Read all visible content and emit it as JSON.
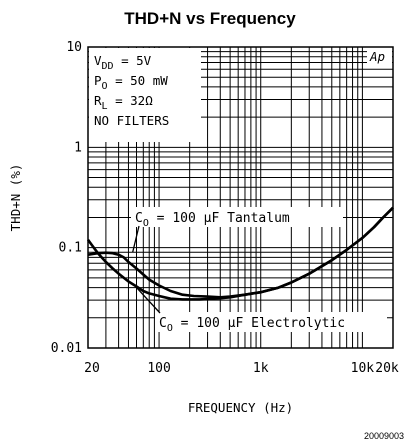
{
  "chart_data": {
    "type": "line",
    "title": "THD+N vs Frequency",
    "xlabel": "FREQUENCY (Hz)",
    "ylabel": "THD+N (%)",
    "x_scale": "log",
    "y_scale": "log",
    "xlim": [
      20,
      20000
    ],
    "ylim": [
      0.01,
      10
    ],
    "grid": true,
    "x_ticks": [
      {
        "value": 20,
        "label": "20"
      },
      {
        "value": 100,
        "label": "100"
      },
      {
        "value": 1000,
        "label": "1k"
      },
      {
        "value": 10000,
        "label": "10k"
      },
      {
        "value": 20000,
        "label": "20k"
      }
    ],
    "y_ticks": [
      {
        "value": 10,
        "label": "10"
      },
      {
        "value": 1,
        "label": "1"
      },
      {
        "value": 0.1,
        "label": "0.1"
      },
      {
        "value": 0.01,
        "label": "0.01"
      }
    ],
    "conditions": [
      "V_DD = 5V",
      "P_O = 50 mW",
      "R_L = 32Ω",
      "NO FILTERS"
    ],
    "ap_mark": "Ap",
    "annotations": [
      {
        "text": "C_O = 100 µF Tantalum",
        "anchor": {
          "x": 55,
          "y": 0.09
        }
      },
      {
        "text": "C_O = 100 µF Electrolytic",
        "anchor": {
          "x": 60,
          "y": 0.04
        }
      }
    ],
    "series": [
      {
        "points": [
          [
            20,
            0.085
          ],
          [
            25,
            0.088
          ],
          [
            30,
            0.089
          ],
          [
            35,
            0.088
          ],
          [
            40,
            0.085
          ],
          [
            45,
            0.08
          ],
          [
            50,
            0.072
          ],
          [
            60,
            0.062
          ],
          [
            70,
            0.054
          ],
          [
            80,
            0.048
          ],
          [
            100,
            0.042
          ],
          [
            130,
            0.037
          ],
          [
            170,
            0.034
          ],
          [
            220,
            0.033
          ],
          [
            300,
            0.0325
          ],
          [
            400,
            0.032
          ],
          [
            500,
            0.0325
          ],
          [
            700,
            0.034
          ],
          [
            1000,
            0.036
          ],
          [
            1500,
            0.04
          ],
          [
            2000,
            0.045
          ],
          [
            3000,
            0.055
          ],
          [
            5000,
            0.075
          ],
          [
            7000,
            0.095
          ],
          [
            10000,
            0.125
          ],
          [
            13000,
            0.16
          ],
          [
            16000,
            0.2
          ],
          [
            20000,
            0.25
          ]
        ]
      },
      {
        "points": [
          [
            20,
            0.12
          ],
          [
            22,
            0.105
          ],
          [
            25,
            0.088
          ],
          [
            30,
            0.072
          ],
          [
            35,
            0.062
          ],
          [
            40,
            0.055
          ],
          [
            50,
            0.046
          ],
          [
            60,
            0.041
          ],
          [
            70,
            0.037
          ],
          [
            80,
            0.035
          ],
          [
            100,
            0.033
          ],
          [
            130,
            0.031
          ],
          [
            170,
            0.0305
          ],
          [
            250,
            0.0305
          ],
          [
            350,
            0.031
          ],
          [
            500,
            0.032
          ],
          [
            700,
            0.034
          ],
          [
            1000,
            0.036
          ],
          [
            1500,
            0.04
          ],
          [
            2000,
            0.045
          ],
          [
            3000,
            0.055
          ],
          [
            5000,
            0.075
          ],
          [
            7000,
            0.095
          ],
          [
            10000,
            0.125
          ],
          [
            13000,
            0.16
          ],
          [
            16000,
            0.2
          ],
          [
            20000,
            0.25
          ]
        ]
      }
    ]
  },
  "figure_id": "20009003"
}
